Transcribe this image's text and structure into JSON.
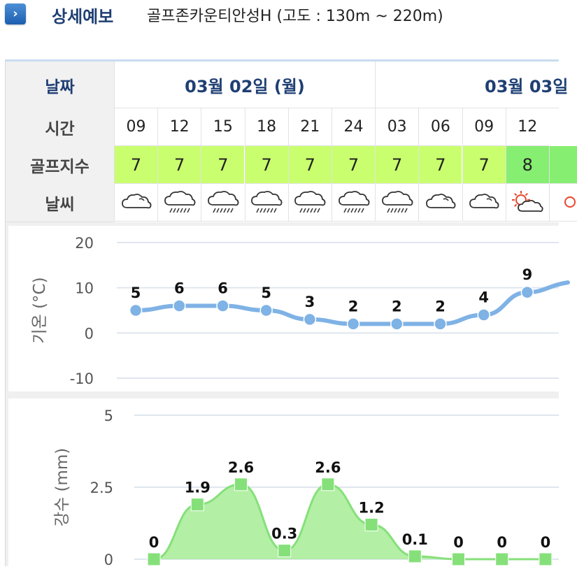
{
  "header": {
    "title": "상세예보",
    "location": "골프존카운티안성H (고도 : 130m ~ 220m)"
  },
  "table": {
    "row_labels": {
      "date": "날짜",
      "time": "시간",
      "golf": "골프지수",
      "weather": "날씨"
    },
    "dates": [
      "03월 02일 (월)",
      "03월 03일"
    ],
    "times": [
      "09",
      "12",
      "15",
      "18",
      "21",
      "24",
      "03",
      "06",
      "09",
      "12"
    ],
    "golf_index": [
      "7",
      "7",
      "7",
      "7",
      "7",
      "7",
      "7",
      "7",
      "7",
      "8"
    ],
    "weather_icons": [
      "cloudy-icon",
      "rain-icon",
      "rain-icon",
      "rain-icon",
      "rain-icon",
      "rain-icon",
      "rain-icon",
      "cloudy-icon",
      "cloudy-icon",
      "partly-sunny-icon"
    ],
    "colors": {
      "golf7": "#c9ff6e",
      "golf8": "#86ee70",
      "header_text": "#1f3f73"
    }
  },
  "chart_data": [
    {
      "type": "line",
      "ylabel": "기온 (°C)",
      "yticks": [
        "20",
        "10",
        "0",
        "-10"
      ],
      "ylim": [
        -10,
        20
      ],
      "x": [
        "09",
        "12",
        "15",
        "18",
        "21",
        "24",
        "03",
        "06",
        "09",
        "12"
      ],
      "values": [
        5,
        6,
        6,
        5,
        3,
        2,
        2,
        2,
        4,
        9
      ],
      "color": "#7fb2e5"
    },
    {
      "type": "area",
      "ylabel": "강수 (mm)",
      "yticks": [
        "5",
        "2.5",
        "0"
      ],
      "ylim": [
        0,
        5
      ],
      "x": [
        "09",
        "12",
        "15",
        "18",
        "21",
        "24",
        "03",
        "06",
        "09",
        "12"
      ],
      "values": [
        0,
        1.9,
        2.6,
        0.3,
        2.6,
        1.2,
        0.1,
        0,
        0,
        0
      ],
      "labels": [
        "0",
        "1.9",
        "2.6",
        "0.3",
        "2.6",
        "1.2",
        "0.1",
        "0",
        "0",
        "0"
      ],
      "color": "#86e07a"
    }
  ]
}
